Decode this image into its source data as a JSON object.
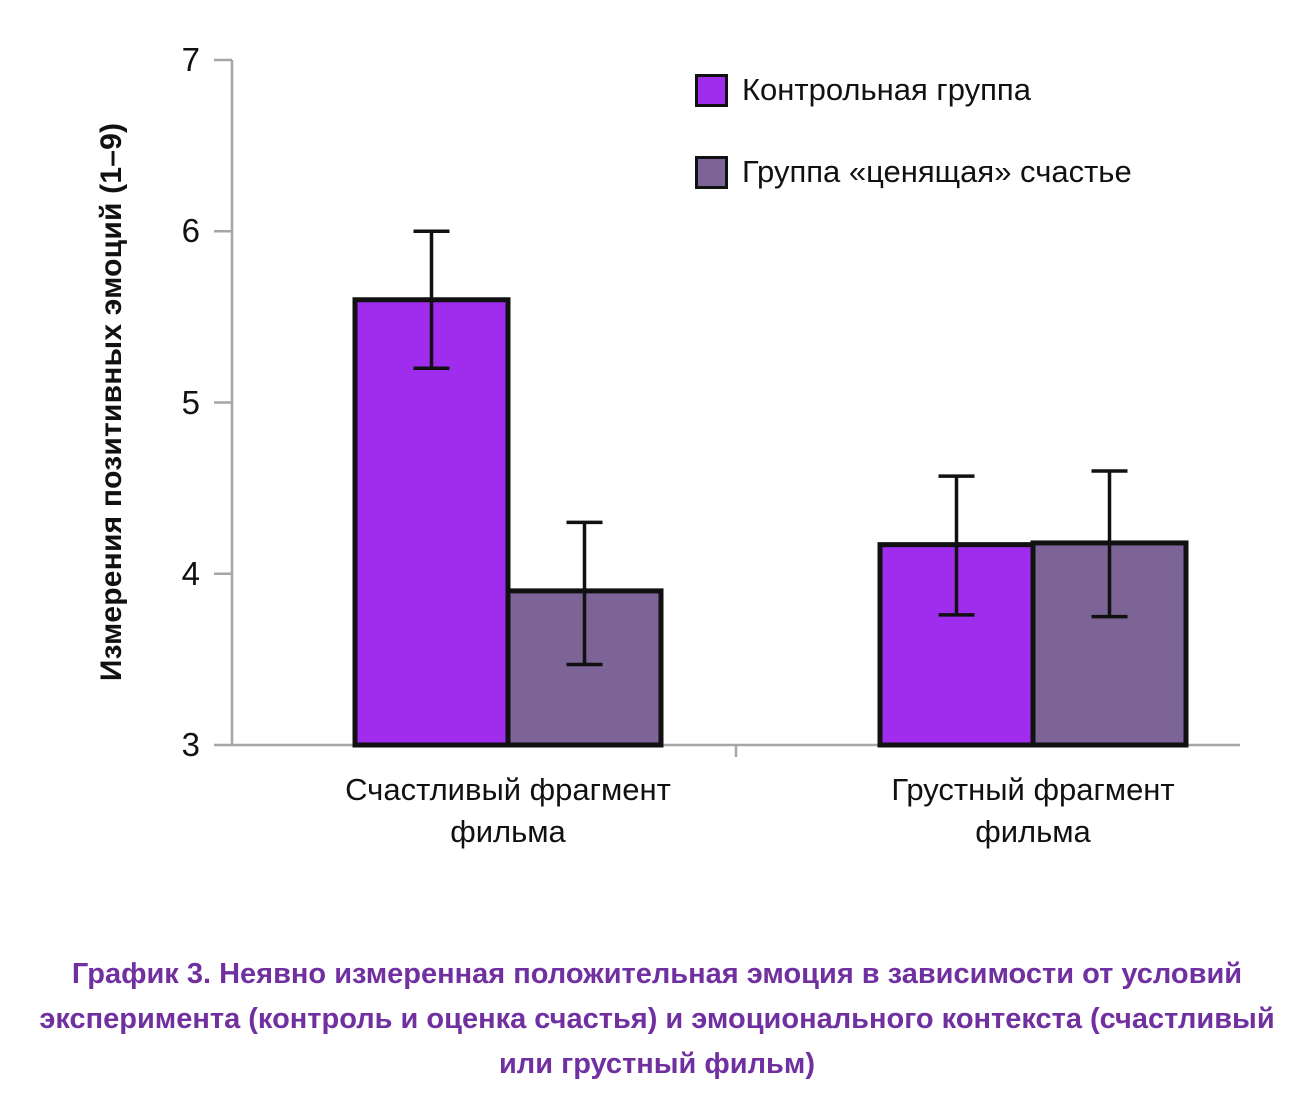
{
  "chart_data": {
    "type": "bar",
    "title": "",
    "ylabel": "Измерения позитивных эмоций (1–9)",
    "xlabel": "",
    "ylim": [
      3,
      7
    ],
    "yticks": [
      3,
      4,
      5,
      6,
      7
    ],
    "grid": false,
    "legend_position": "top-right",
    "axis_color": "#a6a6a6",
    "categories": [
      "Счастливый фрагмент фильма",
      "Грустный фрагмент фильма"
    ],
    "series": [
      {
        "name": "Контрольная группа",
        "color": "#a02cee",
        "values": [
          5.6,
          4.17
        ],
        "err_low": [
          0.4,
          0.41
        ],
        "err_high": [
          0.4,
          0.4
        ]
      },
      {
        "name": "Группа «ценящая» счастье",
        "color": "#7d6496",
        "values": [
          3.9,
          4.18
        ],
        "err_low": [
          0.43,
          0.43
        ],
        "err_high": [
          0.4,
          0.42
        ]
      }
    ]
  },
  "colors": {
    "caption": "#7030a0",
    "bar_border": "#111111",
    "error_bar": "#111111"
  },
  "caption": "График 3. Неявно измеренная положительная эмоция в зависимости от условий эксперимента (контроль и оценка счастья) и эмоционального контекста (счастливый или грустный фильм)"
}
